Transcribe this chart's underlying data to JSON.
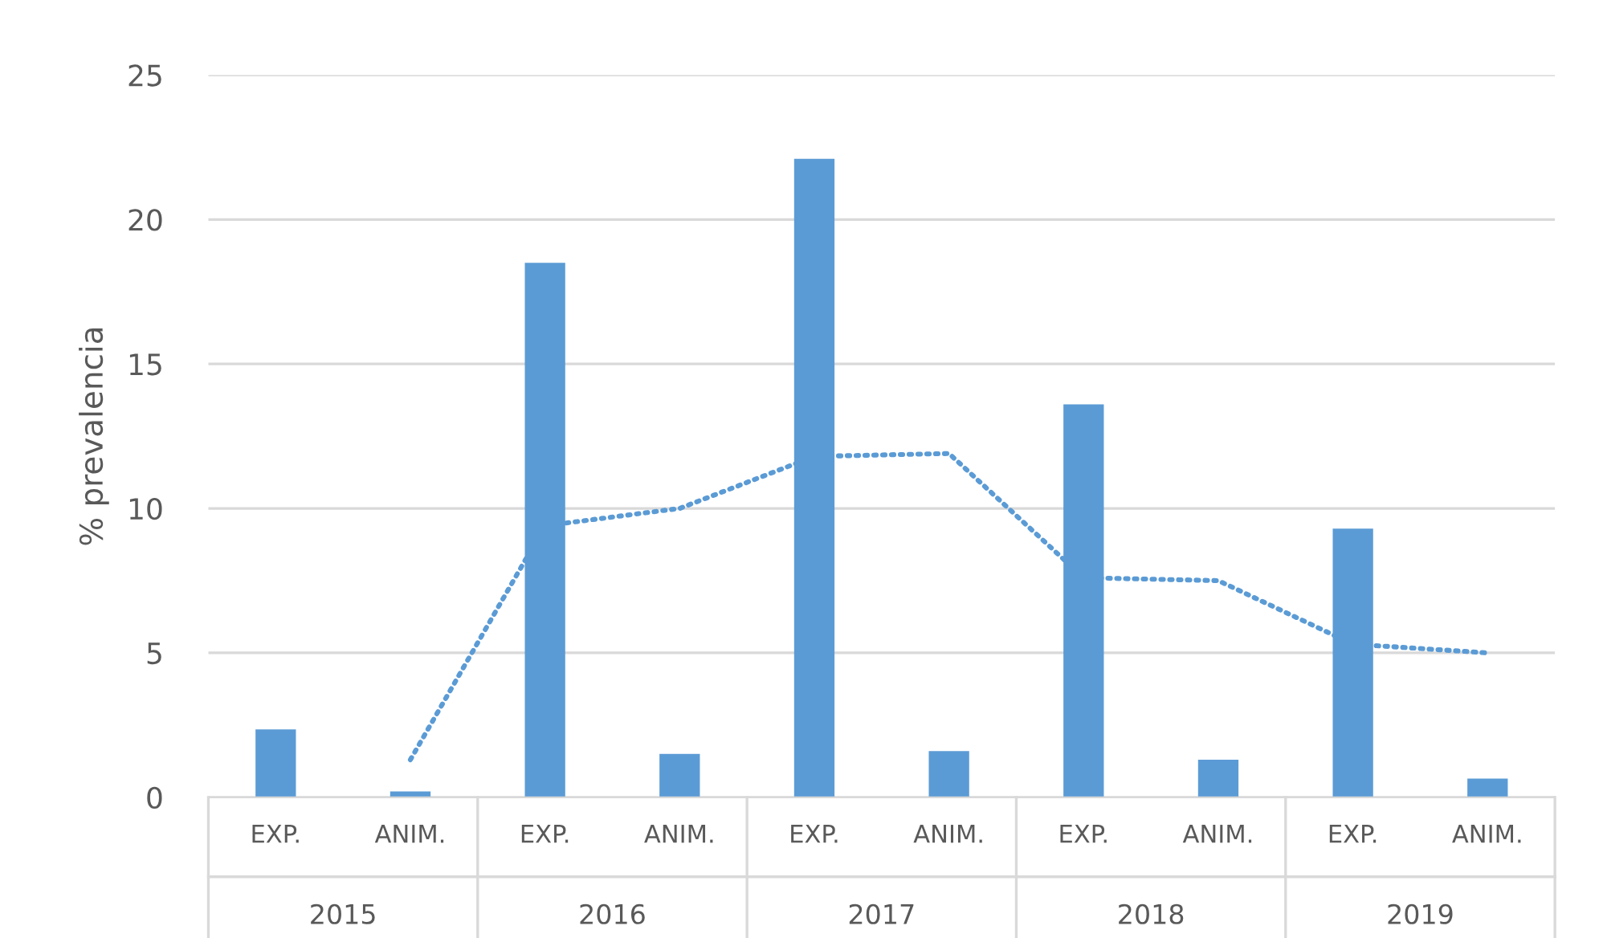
{
  "chart_data": {
    "type": "bar",
    "ylabel": "% prevalencia",
    "categories": [
      "EXP.",
      "ANIM.",
      "EXP.",
      "ANIM.",
      "EXP.",
      "ANIM.",
      "EXP.",
      "ANIM.",
      "EXP.",
      "ANIM."
    ],
    "series": [
      {
        "color": "#5b9bd5",
        "values": [
          2.35,
          0.2,
          18.5,
          1.5,
          22.1,
          1.6,
          13.6,
          1.3,
          9.3,
          0.65
        ]
      },
      {
        "type": "line",
        "color": "#5b9bd5",
        "line_style": "dotted",
        "marker": "none",
        "values": [
          null,
          1.3,
          9.4,
          10.0,
          11.8,
          11.9,
          7.6,
          7.5,
          5.3,
          5.0
        ]
      }
    ],
    "annotations": [
      "2015",
      "2016",
      "2017",
      "2018",
      "2019"
    ],
    "ylim": [
      0,
      25
    ],
    "yticks": [
      0,
      5,
      10,
      15,
      20,
      25
    ],
    "grid": "y"
  }
}
